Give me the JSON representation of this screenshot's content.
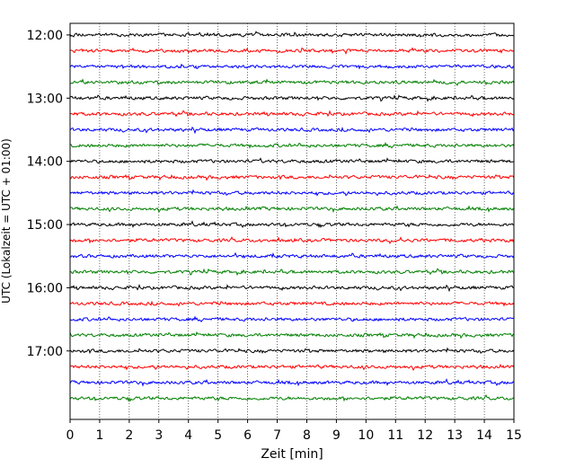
{
  "chart_data": {
    "type": "line",
    "title": "",
    "xlabel": "Zeit  [min]",
    "ylabel": "UTC (Lokalzeit = UTC + 01:00)",
    "xlim": [
      0,
      15
    ],
    "x_ticks": [
      "0",
      "1",
      "2",
      "3",
      "4",
      "5",
      "6",
      "7",
      "8",
      "9",
      "10",
      "11",
      "12",
      "13",
      "14",
      "15"
    ],
    "y_ticks": [
      "12:00",
      "13:00",
      "14:00",
      "15:00",
      "16:00",
      "17:00"
    ],
    "y_range_utc": [
      "11:49",
      "18:05"
    ],
    "trace_interval_minutes": 15,
    "trace_start_times": [
      "12:00",
      "12:15",
      "12:30",
      "12:45",
      "13:00",
      "13:15",
      "13:30",
      "13:45",
      "14:00",
      "14:15",
      "14:30",
      "14:45",
      "15:00",
      "15:15",
      "15:30",
      "15:45",
      "16:00",
      "16:15",
      "16:30",
      "16:45",
      "17:00",
      "17:15",
      "17:30",
      "17:45"
    ],
    "trace_color_cycle": [
      "#000000",
      "#ff0000",
      "#0000ff",
      "#008000"
    ],
    "grid": "vertical dotted at each minute"
  }
}
